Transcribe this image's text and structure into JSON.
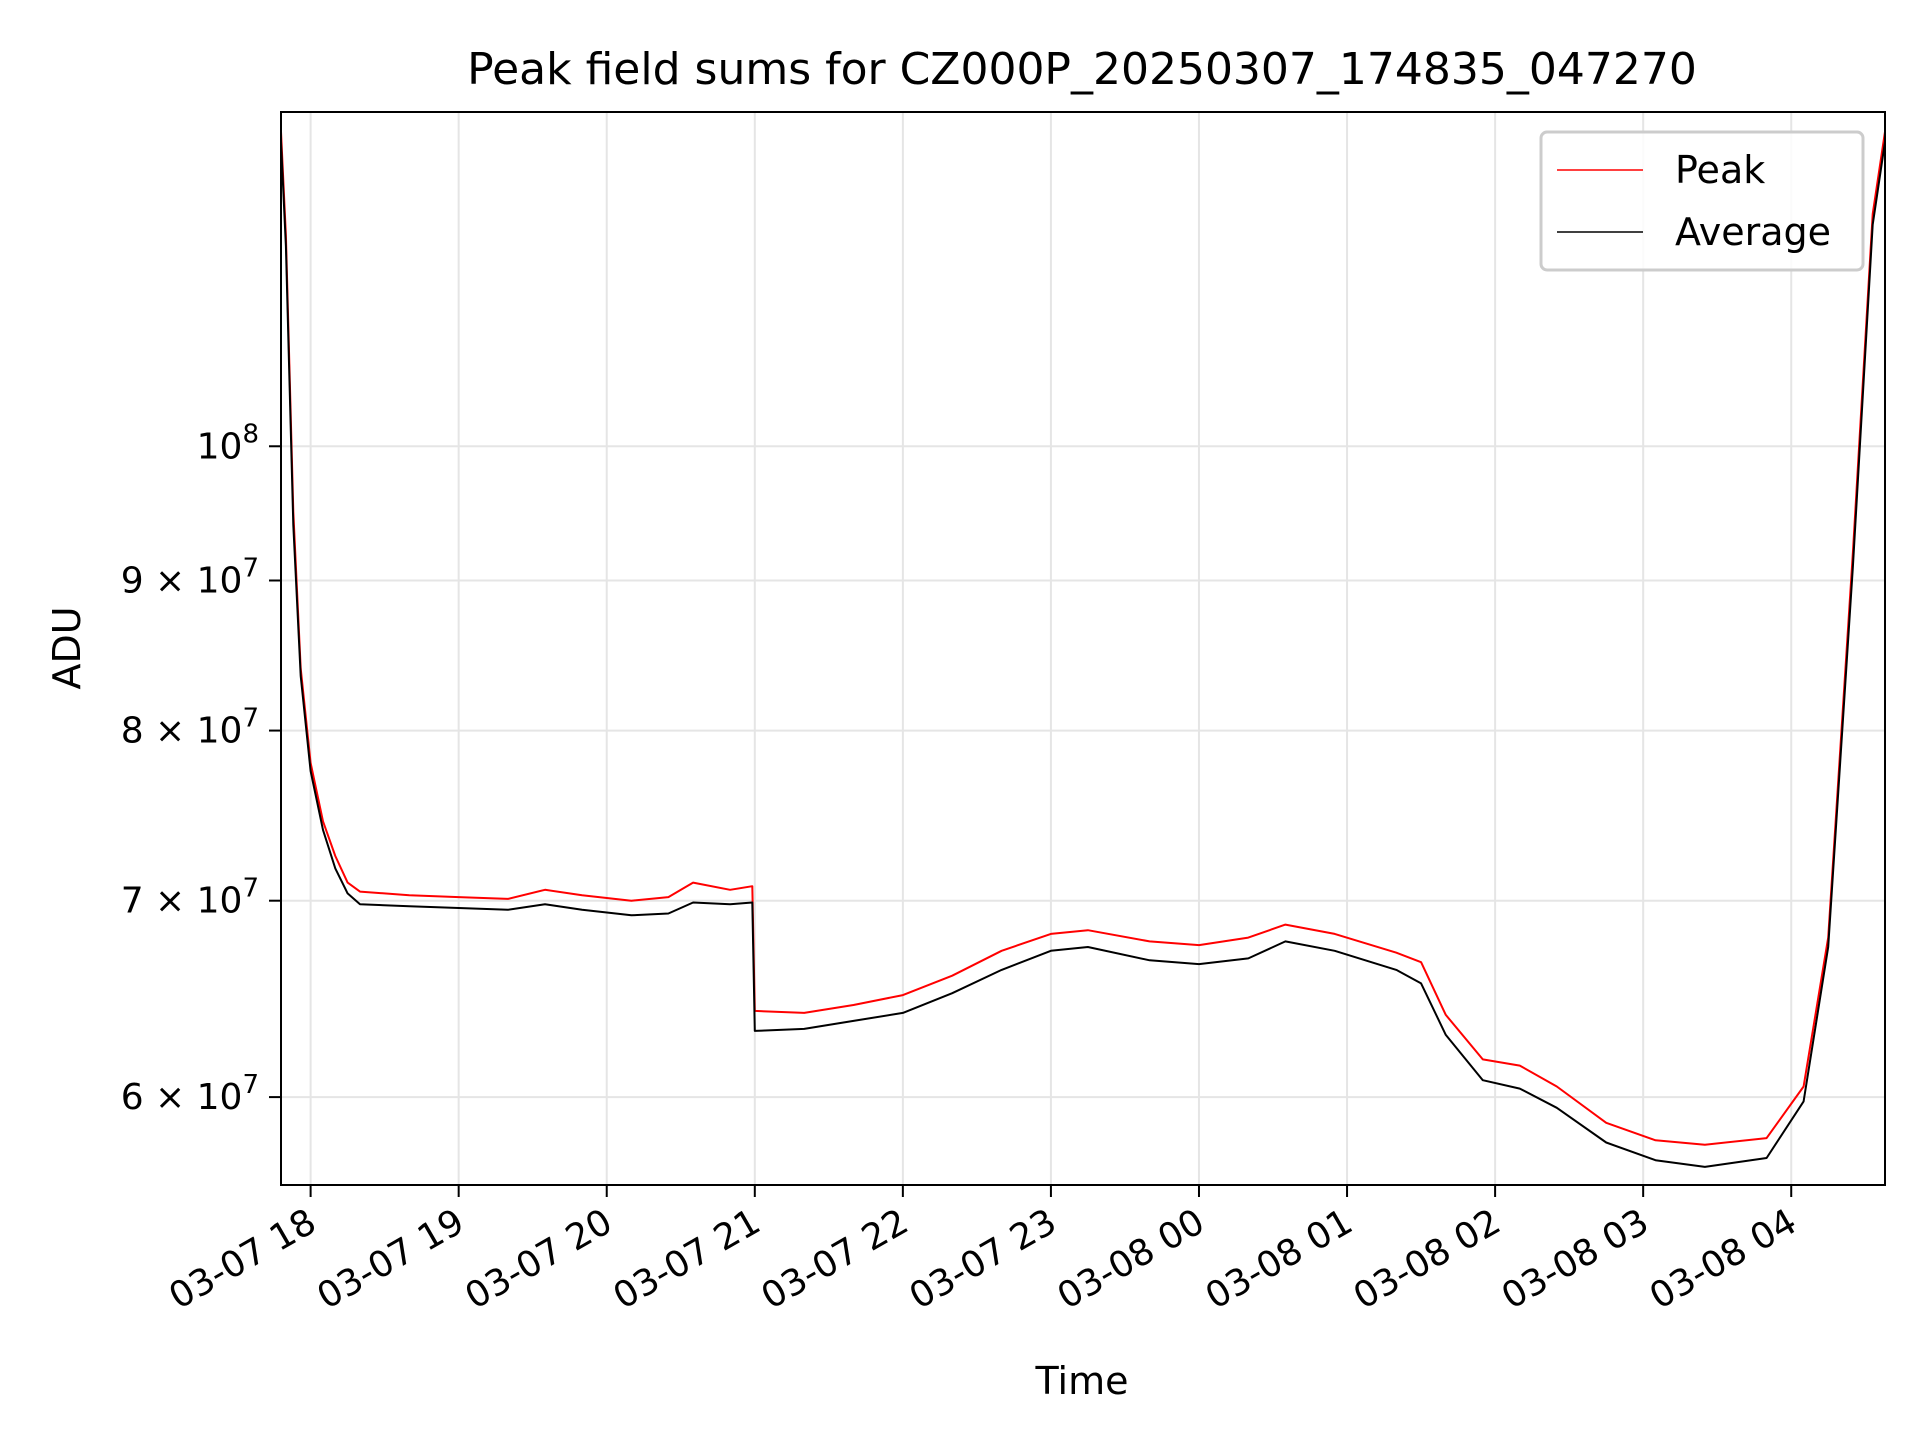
{
  "chart_data": {
    "type": "line",
    "title": "Peak field sums for CZ000P_20250307_174835_047270",
    "xlabel": "Time",
    "ylabel": "ADU",
    "yscale": "log",
    "ylim": [
      56000000,
      130000000
    ],
    "xlim": [
      "2025-03-07 17:48",
      "2025-03-08 04:38"
    ],
    "grid": true,
    "legend": {
      "position": "top-right",
      "entries": [
        "Peak",
        "Average"
      ]
    },
    "colors": {
      "Peak": "#ff0000",
      "Average": "#000000"
    },
    "x_ticks": [
      {
        "t": "2025-03-07 18:00",
        "label": "03-07 18"
      },
      {
        "t": "2025-03-07 19:00",
        "label": "03-07 19"
      },
      {
        "t": "2025-03-07 20:00",
        "label": "03-07 20"
      },
      {
        "t": "2025-03-07 21:00",
        "label": "03-07 21"
      },
      {
        "t": "2025-03-07 22:00",
        "label": "03-07 22"
      },
      {
        "t": "2025-03-07 23:00",
        "label": "03-07 23"
      },
      {
        "t": "2025-03-08 00:00",
        "label": "03-08 00"
      },
      {
        "t": "2025-03-08 01:00",
        "label": "03-08 01"
      },
      {
        "t": "2025-03-08 02:00",
        "label": "03-08 02"
      },
      {
        "t": "2025-03-08 03:00",
        "label": "03-08 03"
      },
      {
        "t": "2025-03-08 04:00",
        "label": "03-08 04"
      }
    ],
    "y_ticks": [
      {
        "value": 60000000,
        "label": "6 × 10",
        "exp": "7"
      },
      {
        "value": 70000000,
        "label": "7 × 10",
        "exp": "7"
      },
      {
        "value": 80000000,
        "label": "8 × 10",
        "exp": "7"
      },
      {
        "value": 90000000,
        "label": "9 × 10",
        "exp": "7"
      },
      {
        "value": 100000000,
        "label": "10",
        "exp": "8"
      }
    ],
    "series": [
      {
        "name": "Peak",
        "points": [
          [
            "2025-03-07 17:48",
            128000000
          ],
          [
            "2025-03-07 17:50",
            118000000
          ],
          [
            "2025-03-07 17:53",
            95000000
          ],
          [
            "2025-03-07 17:56",
            84000000
          ],
          [
            "2025-03-07 18:00",
            78000000
          ],
          [
            "2025-03-07 18:05",
            74500000
          ],
          [
            "2025-03-07 18:10",
            72500000
          ],
          [
            "2025-03-07 18:15",
            71000000
          ],
          [
            "2025-03-07 18:20",
            70500000
          ],
          [
            "2025-03-07 18:40",
            70300000
          ],
          [
            "2025-03-07 19:00",
            70200000
          ],
          [
            "2025-03-07 19:20",
            70100000
          ],
          [
            "2025-03-07 19:35",
            70600000
          ],
          [
            "2025-03-07 19:50",
            70300000
          ],
          [
            "2025-03-07 20:10",
            70000000
          ],
          [
            "2025-03-07 20:25",
            70200000
          ],
          [
            "2025-03-07 20:35",
            71000000
          ],
          [
            "2025-03-07 20:50",
            70600000
          ],
          [
            "2025-03-07 20:59",
            70800000
          ],
          [
            "2025-03-07 21:00",
            64200000
          ],
          [
            "2025-03-07 21:20",
            64100000
          ],
          [
            "2025-03-07 21:40",
            64500000
          ],
          [
            "2025-03-07 22:00",
            65000000
          ],
          [
            "2025-03-07 22:20",
            66000000
          ],
          [
            "2025-03-07 22:40",
            67300000
          ],
          [
            "2025-03-07 23:00",
            68200000
          ],
          [
            "2025-03-07 23:15",
            68400000
          ],
          [
            "2025-03-07 23:40",
            67800000
          ],
          [
            "2025-03-08 00:00",
            67600000
          ],
          [
            "2025-03-08 00:20",
            68000000
          ],
          [
            "2025-03-08 00:35",
            68700000
          ],
          [
            "2025-03-08 00:55",
            68200000
          ],
          [
            "2025-03-08 01:20",
            67200000
          ],
          [
            "2025-03-08 01:30",
            66700000
          ],
          [
            "2025-03-08 01:40",
            64000000
          ],
          [
            "2025-03-08 01:55",
            61800000
          ],
          [
            "2025-03-08 02:10",
            61500000
          ],
          [
            "2025-03-08 02:25",
            60500000
          ],
          [
            "2025-03-08 02:45",
            58800000
          ],
          [
            "2025-03-08 03:05",
            58000000
          ],
          [
            "2025-03-08 03:25",
            57800000
          ],
          [
            "2025-03-08 03:50",
            58100000
          ],
          [
            "2025-03-08 04:05",
            60500000
          ],
          [
            "2025-03-08 04:15",
            68000000
          ],
          [
            "2025-03-08 04:25",
            92000000
          ],
          [
            "2025-03-08 04:33",
            120000000
          ],
          [
            "2025-03-08 04:38",
            128000000
          ]
        ]
      },
      {
        "name": "Average",
        "points": [
          [
            "2025-03-07 17:48",
            127000000
          ],
          [
            "2025-03-07 17:50",
            117000000
          ],
          [
            "2025-03-07 17:53",
            94000000
          ],
          [
            "2025-03-07 17:56",
            83500000
          ],
          [
            "2025-03-07 18:00",
            77500000
          ],
          [
            "2025-03-07 18:05",
            74000000
          ],
          [
            "2025-03-07 18:10",
            71800000
          ],
          [
            "2025-03-07 18:15",
            70400000
          ],
          [
            "2025-03-07 18:20",
            69800000
          ],
          [
            "2025-03-07 18:40",
            69700000
          ],
          [
            "2025-03-07 19:00",
            69600000
          ],
          [
            "2025-03-07 19:20",
            69500000
          ],
          [
            "2025-03-07 19:35",
            69800000
          ],
          [
            "2025-03-07 19:50",
            69500000
          ],
          [
            "2025-03-07 20:10",
            69200000
          ],
          [
            "2025-03-07 20:25",
            69300000
          ],
          [
            "2025-03-07 20:35",
            69900000
          ],
          [
            "2025-03-07 20:50",
            69800000
          ],
          [
            "2025-03-07 20:59",
            69900000
          ],
          [
            "2025-03-07 21:00",
            63200000
          ],
          [
            "2025-03-07 21:20",
            63300000
          ],
          [
            "2025-03-07 21:40",
            63700000
          ],
          [
            "2025-03-07 22:00",
            64100000
          ],
          [
            "2025-03-07 22:20",
            65100000
          ],
          [
            "2025-03-07 22:40",
            66300000
          ],
          [
            "2025-03-07 23:00",
            67300000
          ],
          [
            "2025-03-07 23:15",
            67500000
          ],
          [
            "2025-03-07 23:40",
            66800000
          ],
          [
            "2025-03-08 00:00",
            66600000
          ],
          [
            "2025-03-08 00:20",
            66900000
          ],
          [
            "2025-03-08 00:35",
            67800000
          ],
          [
            "2025-03-08 00:55",
            67300000
          ],
          [
            "2025-03-08 01:20",
            66300000
          ],
          [
            "2025-03-08 01:30",
            65600000
          ],
          [
            "2025-03-08 01:40",
            63000000
          ],
          [
            "2025-03-08 01:55",
            60800000
          ],
          [
            "2025-03-08 02:10",
            60400000
          ],
          [
            "2025-03-08 02:25",
            59500000
          ],
          [
            "2025-03-08 02:45",
            57900000
          ],
          [
            "2025-03-08 03:05",
            57100000
          ],
          [
            "2025-03-08 03:25",
            56800000
          ],
          [
            "2025-03-08 03:50",
            57200000
          ],
          [
            "2025-03-08 04:05",
            59800000
          ],
          [
            "2025-03-08 04:15",
            67500000
          ],
          [
            "2025-03-08 04:25",
            91000000
          ],
          [
            "2025-03-08 04:33",
            119000000
          ],
          [
            "2025-03-08 04:38",
            127000000
          ]
        ]
      }
    ]
  }
}
